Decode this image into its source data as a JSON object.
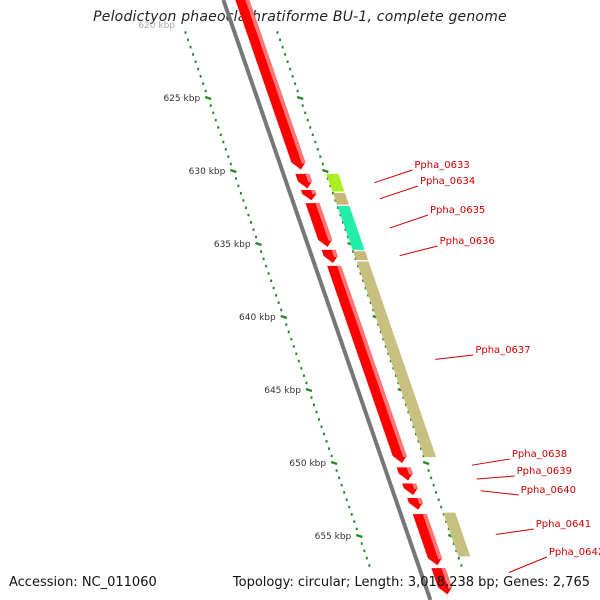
{
  "title": "Pelodictyon phaeoclathratiforme BU-1, complete genome",
  "accession": "Accession: NC_011060",
  "summary": "Topology: circular; Length: 3,018,238 bp; Genes: 2,765",
  "scale_labels": [
    {
      "text": "620 kbp",
      "kbp": 620
    },
    {
      "text": "625 kbp",
      "kbp": 625
    },
    {
      "text": "630 kbp",
      "kbp": 630
    },
    {
      "text": "635 kbp",
      "kbp": 635
    },
    {
      "text": "640 kbp",
      "kbp": 640
    },
    {
      "text": "645 kbp",
      "kbp": 645
    },
    {
      "text": "650 kbp",
      "kbp": 650
    },
    {
      "text": "655 kbp",
      "kbp": 655
    }
  ],
  "genes": [
    {
      "label": "Ppha_0633",
      "start_kbp": 630.2,
      "end_kbp": 631.4,
      "color": "#aaee22"
    },
    {
      "label": "Ppha_0634",
      "start_kbp": 631.5,
      "end_kbp": 632.3,
      "color": "#c8b878"
    },
    {
      "label": "Ppha_0635",
      "start_kbp": 632.4,
      "end_kbp": 635.4,
      "color": "#22eeaa"
    },
    {
      "label": "Ppha_0636",
      "start_kbp": 635.5,
      "end_kbp": 636.1,
      "color": "#c8b878"
    },
    {
      "label": "Ppha_0637",
      "start_kbp": 636.2,
      "end_kbp": 649.6,
      "color": "#c8c080"
    },
    {
      "label": "Ppha_0638",
      "start_kbp": 649.7,
      "end_kbp": 650.6,
      "color": "#ff0000"
    },
    {
      "label": "Ppha_0639",
      "start_kbp": 650.7,
      "end_kbp": 651.5,
      "color": "#ff0000"
    },
    {
      "label": "Ppha_0640",
      "start_kbp": 651.6,
      "end_kbp": 652.2,
      "color": "#ff0000"
    },
    {
      "label": "Ppha_0641",
      "start_kbp": 653.4,
      "end_kbp": 656.4,
      "color": "#c8c080"
    },
    {
      "label": "Ppha_0642",
      "start_kbp": 656.5,
      "end_kbp": 658.5,
      "color": "#ff0000"
    }
  ],
  "colors": {
    "backbone": "#777777",
    "reverse_cds": "#ff0000",
    "forward_cds_olive": "#c8c080",
    "tick": "#228b22",
    "label": "#cc0000"
  }
}
